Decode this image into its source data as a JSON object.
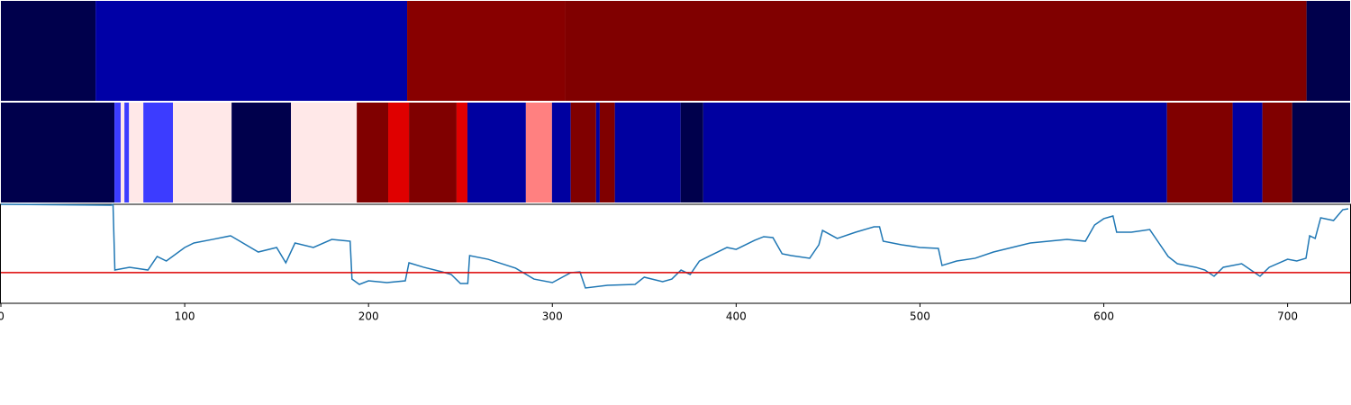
{
  "chart_data": [
    {
      "type": "segments",
      "xlim": [
        0,
        734
      ],
      "x": [
        0,
        51.5,
        221,
        307,
        710.3,
        734
      ],
      "colors": [
        "#00004c",
        "#0000a6",
        "#880000",
        "#800000",
        "#00004c"
      ]
    },
    {
      "type": "segments",
      "xlim": [
        0,
        734
      ],
      "x": [
        0,
        61.8,
        65.2,
        67.2,
        69.7,
        77.5,
        93.6,
        125.5,
        157.8,
        193.6,
        210.7,
        222,
        247.9,
        253.8,
        285.6,
        299.8,
        310,
        323.8,
        325.8,
        334,
        369.8,
        382.1,
        634.4,
        670.1,
        686.3,
        702.5,
        734
      ],
      "colors": [
        "#00004c",
        "#3c3cff",
        "#ffe8e8",
        "#3c3cff",
        "#ffe8e8",
        "#3c3cff",
        "#ffe8e8",
        "#00004c",
        "#ffe8e8",
        "#800000",
        "#e00000",
        "#800000",
        "#e00000",
        "#0000a0",
        "#ff8080",
        "#0000a0",
        "#800000",
        "#0000a0",
        "#800000",
        "#0000a0",
        "#00004c",
        "#0000a0",
        "#800000",
        "#0000a0",
        "#800000",
        "#00004c"
      ]
    },
    {
      "type": "line",
      "xlim": [
        0,
        734
      ],
      "xticks": [
        0,
        100,
        200,
        300,
        400,
        500,
        600,
        700
      ],
      "ylim": [
        0,
        1
      ],
      "hline": 0.31,
      "hline_color": "#dd0000",
      "x": [
        0,
        60,
        61,
        62,
        70,
        80,
        85,
        90,
        100,
        105,
        115,
        125,
        130,
        140,
        150,
        155,
        160,
        170,
        180,
        190,
        191,
        195,
        200,
        210,
        220,
        222,
        230,
        240,
        245,
        250,
        254,
        255,
        265,
        280,
        290,
        300,
        310,
        315,
        318,
        330,
        345,
        350,
        360,
        365,
        370,
        375,
        380,
        385,
        395,
        400,
        410,
        415,
        420,
        425,
        430,
        440,
        445,
        447,
        455,
        465,
        475,
        478,
        480,
        490,
        500,
        510,
        512,
        520,
        530,
        540,
        550,
        560,
        570,
        580,
        590,
        595,
        600,
        605,
        607,
        615,
        625,
        630,
        635,
        640,
        650,
        655,
        660,
        665,
        675,
        680,
        685,
        690,
        700,
        705,
        710,
        712,
        715,
        718,
        725,
        730,
        733
      ],
      "series": [
        {
          "color": "#1f77b4",
          "values": [
            1.0,
            0.991,
            1.0,
            0.336,
            0.364,
            0.336,
            0.473,
            0.427,
            0.564,
            0.609,
            0.645,
            0.682,
            0.627,
            0.518,
            0.564,
            0.409,
            0.609,
            0.564,
            0.645,
            0.627,
            0.245,
            0.191,
            0.227,
            0.209,
            0.227,
            0.409,
            0.364,
            0.318,
            0.291,
            0.2,
            0.2,
            0.482,
            0.445,
            0.355,
            0.245,
            0.209,
            0.309,
            0.318,
            0.155,
            0.182,
            0.191,
            0.264,
            0.218,
            0.245,
            0.336,
            0.291,
            0.427,
            0.473,
            0.564,
            0.545,
            0.636,
            0.673,
            0.664,
            0.5,
            0.482,
            0.455,
            0.591,
            0.736,
            0.655,
            0.718,
            0.773,
            0.773,
            0.627,
            0.591,
            0.564,
            0.555,
            0.382,
            0.427,
            0.455,
            0.518,
            0.564,
            0.609,
            0.627,
            0.645,
            0.627,
            0.791,
            0.855,
            0.882,
            0.718,
            0.718,
            0.745,
            0.609,
            0.473,
            0.4,
            0.364,
            0.336,
            0.273,
            0.364,
            0.4,
            0.336,
            0.273,
            0.364,
            0.445,
            0.427,
            0.455,
            0.682,
            0.655,
            0.864,
            0.836,
            0.945,
            0.955
          ]
        }
      ]
    }
  ]
}
